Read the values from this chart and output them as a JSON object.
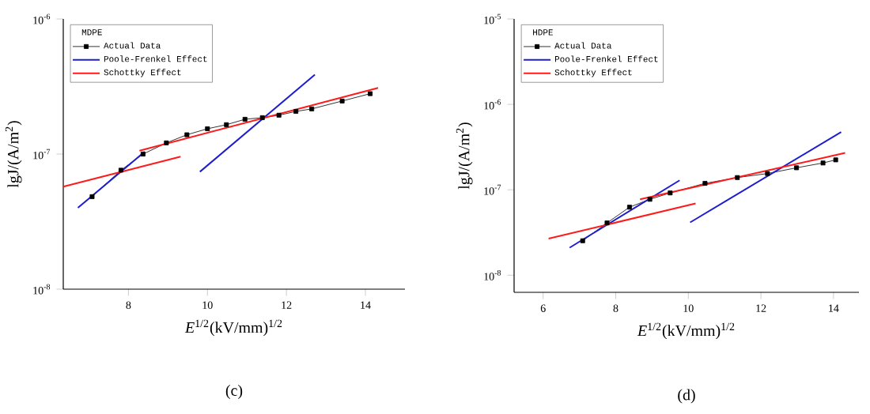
{
  "chart_data": [
    {
      "type": "line",
      "legend_title": "MDPE",
      "xlabel": "*E*$^{1/2}$(kV/mm)$^{1/2}$",
      "ylabel": "lgJ/(A/m$^{2}$)",
      "log": "y",
      "legend": "top left",
      "xlim": [
        6.35,
        15
      ],
      "ylim": [
        1e-08,
        1e-06
      ],
      "xticks": [
        8,
        10,
        12,
        14
      ],
      "yticks": [
        {
          "value": 1e-08,
          "label": "10$^{-8}$"
        },
        {
          "value": 1e-07,
          "label": "10$^{-7}$"
        },
        {
          "value": 1e-06,
          "label": "10$^{-6}$"
        }
      ],
      "annotations": [
        "(c)"
      ],
      "series": [
        {
          "name": "Actual Data",
          "color": "#000000",
          "marker": "square",
          "x": [
            7.08,
            7.81,
            8.37,
            8.96,
            9.48,
            10.0,
            10.48,
            10.95,
            11.39,
            11.81,
            12.24,
            12.64,
            13.41,
            14.12
          ],
          "values": [
            4.84e-08,
            7.6e-08,
            1e-07,
            1.21e-07,
            1.39e-07,
            1.54e-07,
            1.65e-07,
            1.81e-07,
            1.86e-07,
            1.94e-07,
            2.07e-07,
            2.16e-07,
            2.47e-07,
            2.8e-07
          ]
        },
        {
          "name": "Poole-Frenkel Effect",
          "color": "#1c1cd0",
          "marker": "none",
          "x": [
            6.72,
            8.41
          ],
          "values": [
            4e-08,
            1.04e-07
          ]
        },
        {
          "color": "#1c1cd0",
          "marker": "none",
          "x": [
            9.81,
            12.72
          ],
          "values": [
            7.4e-08,
            3.87e-07
          ]
        },
        {
          "name": "Schottky Effect",
          "color": "#ff1a1a",
          "marker": "none",
          "x": [
            6.35,
            9.32
          ],
          "values": [
            5.74e-08,
            9.57e-08
          ]
        },
        {
          "color": "#ff1a1a",
          "marker": "none",
          "x": [
            8.28,
            14.32
          ],
          "values": [
            1.06e-07,
            3.09e-07
          ]
        }
      ]
    },
    {
      "type": "line",
      "legend_title": "HDPE",
      "xlabel": "*E*$^{1/2}$(kV/mm)$^{1/2}$",
      "ylabel": "lgJ/(A/m$^{2}$)",
      "log": "y",
      "legend": "top left",
      "xlim": [
        5.2,
        14.7
      ],
      "ylim": [
        6.3e-09,
        1e-05
      ],
      "xticks": [
        6,
        8,
        10,
        12,
        14
      ],
      "yticks": [
        {
          "value": 1e-08,
          "label": "10$^{-8}$"
        },
        {
          "value": 1e-07,
          "label": "10$^{-7}$"
        },
        {
          "value": 1e-06,
          "label": "10$^{-6}$"
        },
        {
          "value": 1e-05,
          "label": "10$^{-5}$"
        }
      ],
      "annotations": [
        "(d)"
      ],
      "series": [
        {
          "name": "Actual Data",
          "color": "#000000",
          "marker": "square",
          "x": [
            7.09,
            7.76,
            8.38,
            8.94,
            9.5,
            10.46,
            11.35,
            12.18,
            12.98,
            13.71,
            14.06
          ],
          "values": [
            2.53e-08,
            4.09e-08,
            6.26e-08,
            7.74e-08,
            9.19e-08,
            1.19e-07,
            1.39e-07,
            1.55e-07,
            1.81e-07,
            2.06e-07,
            2.24e-07
          ]
        },
        {
          "name": "Poole-Frenkel Effect",
          "color": "#1c1cd0",
          "marker": "none",
          "x": [
            6.73,
            9.76
          ],
          "values": [
            2.1e-08,
            1.29e-07
          ]
        },
        {
          "color": "#1c1cd0",
          "marker": "none",
          "x": [
            10.05,
            14.21
          ],
          "values": [
            4.15e-08,
            4.75e-07
          ]
        },
        {
          "name": "Schottky Effect",
          "color": "#ff1a1a",
          "marker": "none",
          "x": [
            6.15,
            10.2
          ],
          "values": [
            2.68e-08,
            6.92e-08
          ]
        },
        {
          "color": "#ff1a1a",
          "marker": "none",
          "x": [
            8.67,
            14.32
          ],
          "values": [
            7.74e-08,
            2.7e-07
          ]
        }
      ]
    }
  ]
}
